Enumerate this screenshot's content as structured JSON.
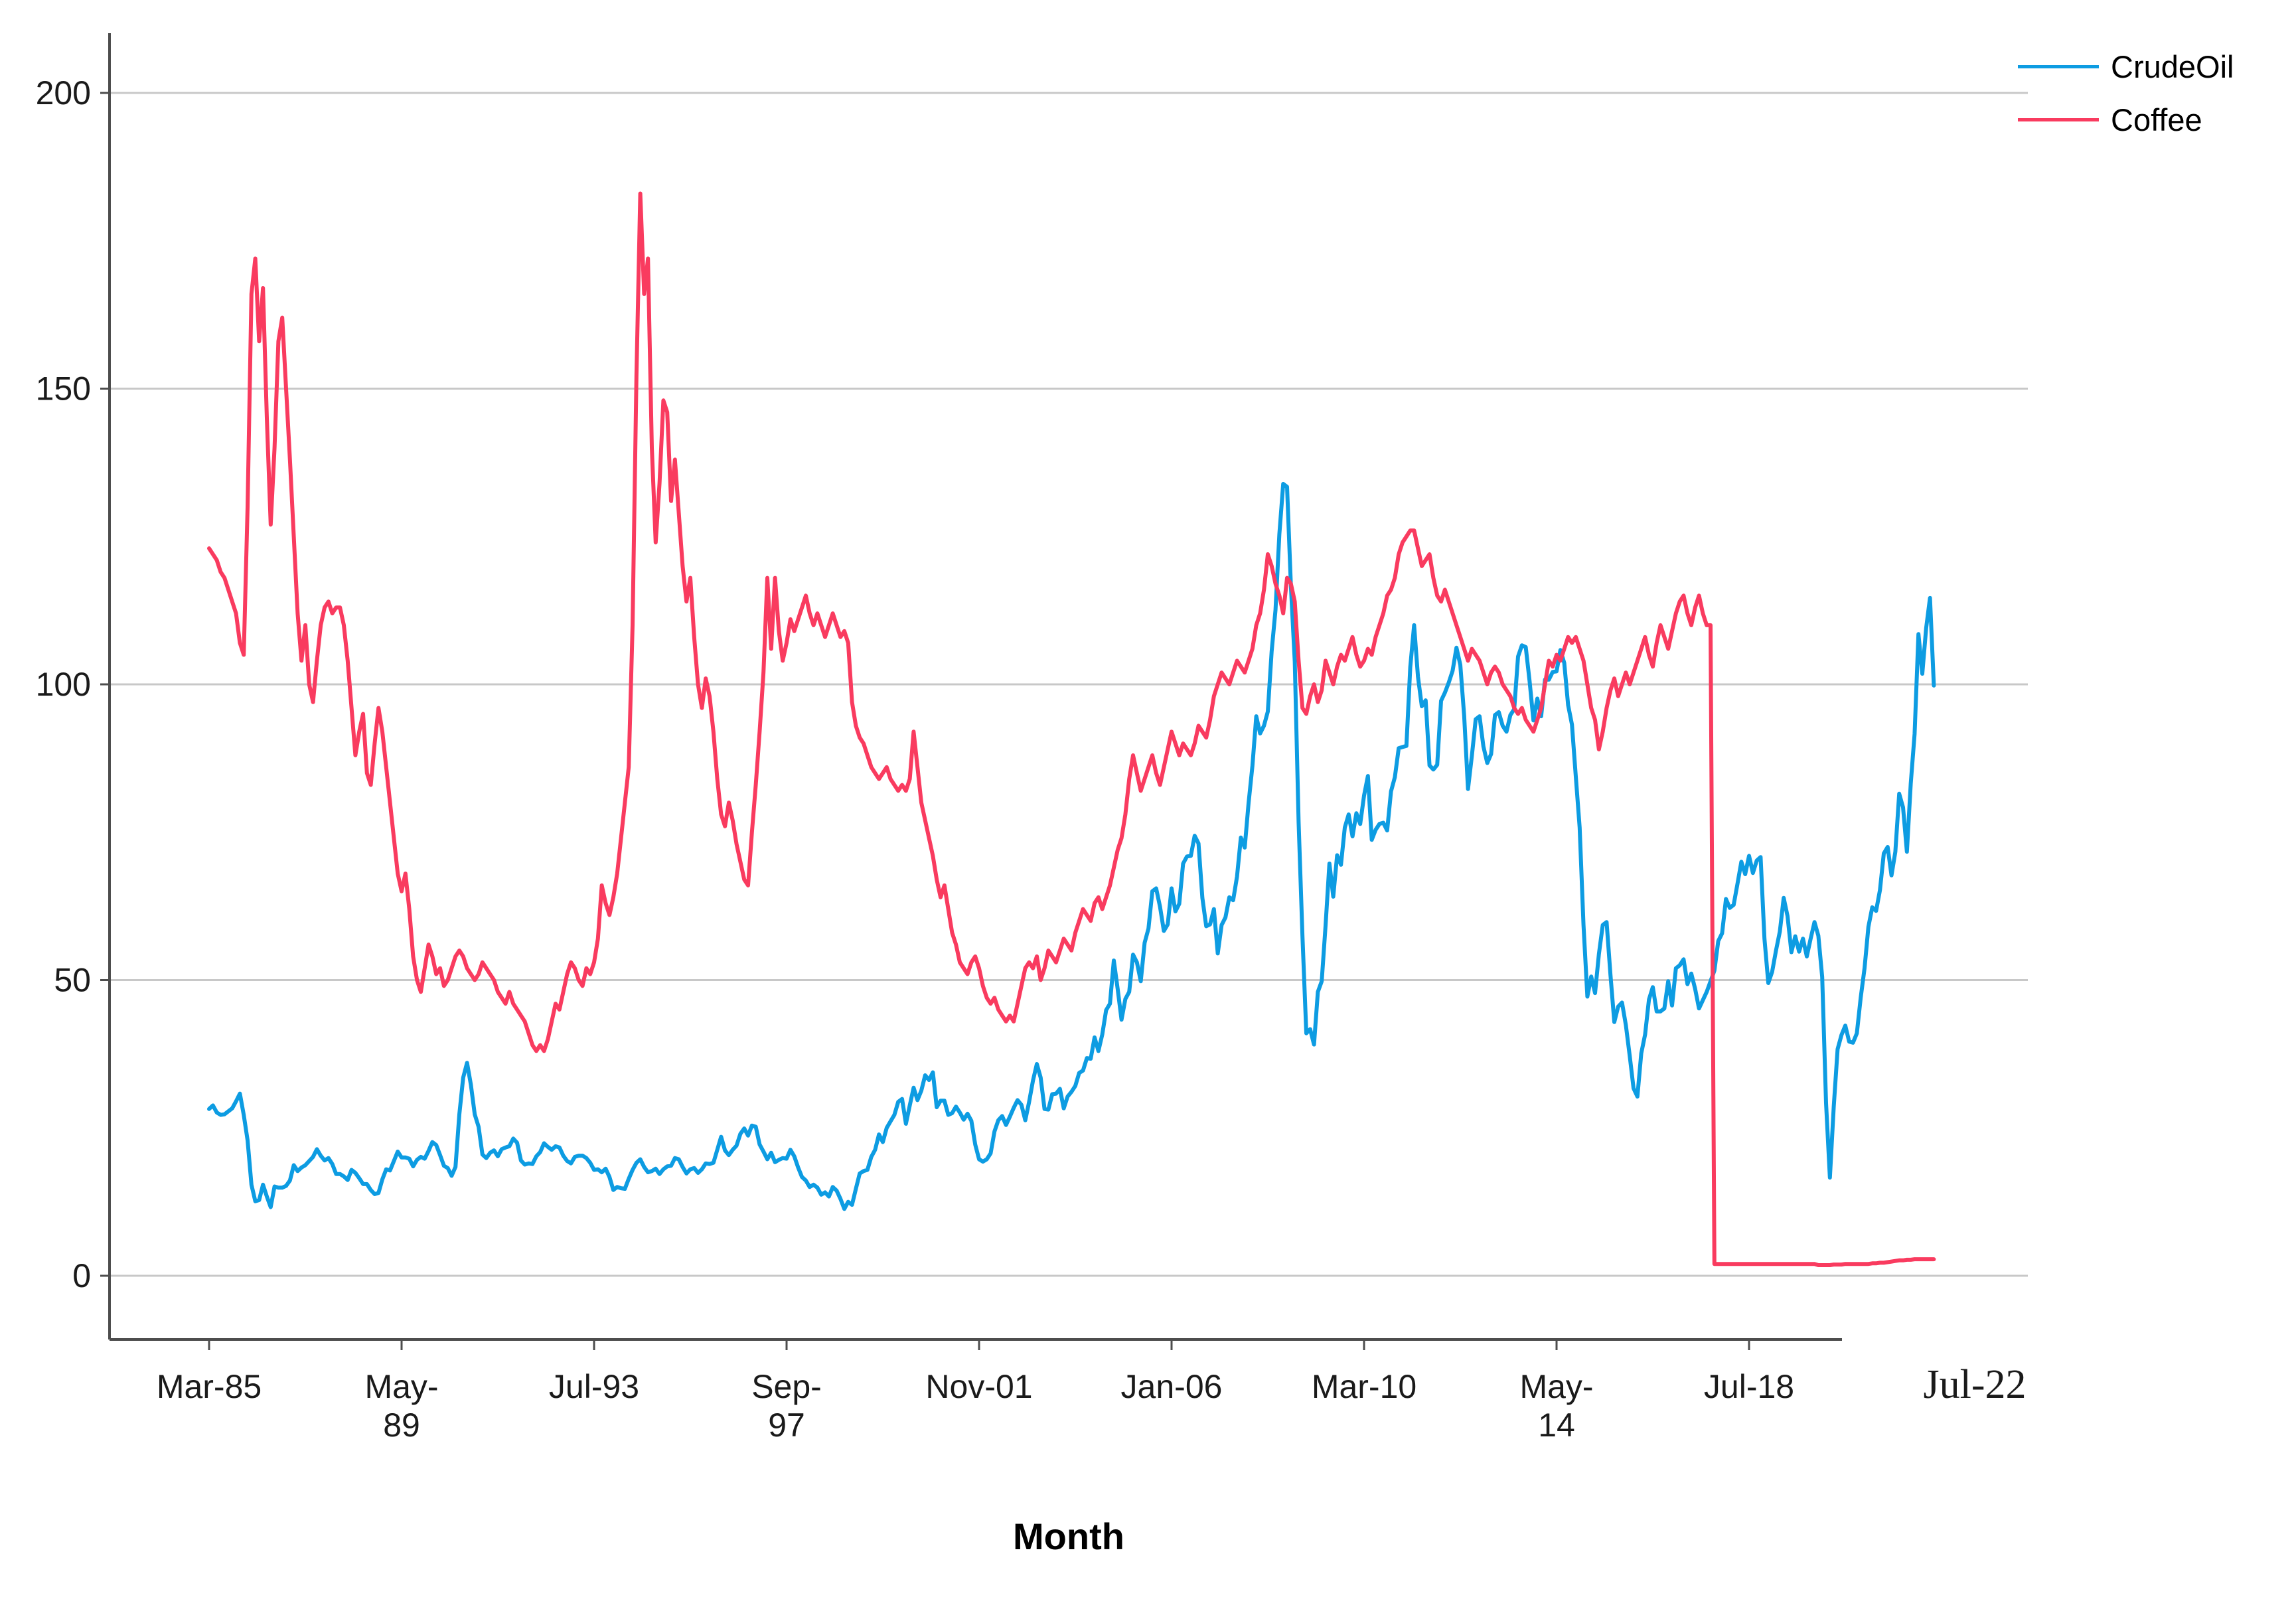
{
  "chart_data": {
    "type": "line",
    "title": "",
    "xlabel": "Month",
    "ylabel": "",
    "grid": true,
    "legend_position": "top-right",
    "frequency": "monthly",
    "start_month": "Mar-1985",
    "end_month": "Jul-2022",
    "ylim": [
      -10,
      210
    ],
    "y_ticks": [
      0,
      50,
      100,
      150,
      200
    ],
    "x_ticks": [
      {
        "label_lines": [
          "Mar-85"
        ],
        "month_index": 0
      },
      {
        "label_lines": [
          "May-",
          "89"
        ],
        "month_index": 50
      },
      {
        "label_lines": [
          "Jul-93"
        ],
        "month_index": 100
      },
      {
        "label_lines": [
          "Sep-",
          "97"
        ],
        "month_index": 150
      },
      {
        "label_lines": [
          "Nov-01"
        ],
        "month_index": 200
      },
      {
        "label_lines": [
          "Jan-06"
        ],
        "month_index": 250
      },
      {
        "label_lines": [
          "Mar-10"
        ],
        "month_index": 300
      },
      {
        "label_lines": [
          "May-",
          "14"
        ],
        "month_index": 350
      },
      {
        "label_lines": [
          "Jul-18"
        ],
        "month_index": 400
      },
      {
        "label_lines": [
          "Jul-22"
        ],
        "month_index": 448,
        "serif": true,
        "x_override": 2975
      }
    ],
    "series": [
      {
        "name": "CrudeOil",
        "color": "#0d9ce2",
        "values": [
          28.2,
          28.8,
          27.6,
          27.2,
          27.3,
          27.8,
          28.3,
          29.5,
          30.8,
          27.2,
          22.9,
          15.4,
          12.6,
          12.8,
          15.4,
          13.4,
          11.6,
          15.1,
          14.9,
          14.9,
          15.2,
          16.1,
          18.7,
          17.7,
          18.3,
          18.7,
          19.4,
          20.1,
          21.4,
          20.3,
          19.5,
          19.9,
          18.9,
          17.2,
          17.2,
          16.8,
          16.2,
          17.9,
          17.4,
          16.5,
          15.5,
          15.5,
          14.5,
          13.8,
          14.0,
          16.3,
          18.0,
          17.8,
          19.4,
          21.0,
          20.0,
          20.0,
          19.8,
          18.5,
          19.6,
          20.1,
          19.8,
          21.1,
          22.6,
          22.1,
          20.4,
          18.6,
          18.2,
          16.9,
          18.4,
          27.3,
          33.5,
          36.0,
          32.3,
          27.3,
          25.2,
          20.5,
          19.9,
          20.8,
          21.2,
          20.2,
          21.4,
          21.7,
          21.9,
          23.2,
          22.5,
          19.5,
          18.8,
          19.0,
          18.9,
          20.2,
          20.9,
          22.4,
          21.8,
          21.3,
          21.9,
          21.7,
          20.3,
          19.4,
          19.0,
          20.1,
          20.3,
          20.3,
          19.9,
          19.1,
          17.9,
          18.0,
          17.5,
          18.1,
          16.7,
          14.5,
          15.0,
          14.8,
          14.7,
          16.4,
          17.9,
          19.1,
          19.7,
          18.4,
          17.5,
          17.7,
          18.1,
          17.2,
          18.0,
          18.5,
          18.6,
          19.9,
          19.7,
          18.4,
          17.3,
          18.0,
          18.2,
          17.4,
          18.0,
          19.0,
          18.9,
          19.1,
          21.3,
          23.5,
          21.2,
          20.4,
          21.3,
          22.0,
          24.0,
          24.9,
          23.7,
          25.4,
          25.2,
          22.2,
          21.0,
          19.7,
          20.8,
          19.2,
          19.6,
          19.9,
          19.8,
          21.3,
          20.2,
          18.3,
          16.7,
          16.1,
          15.0,
          15.4,
          14.9,
          13.7,
          14.1,
          13.4,
          15.0,
          14.4,
          13.0,
          11.3,
          12.5,
          12.0,
          14.7,
          17.3,
          17.7,
          17.9,
          20.1,
          21.3,
          23.9,
          22.6,
          25.0,
          26.1,
          27.2,
          29.4,
          29.9,
          25.7,
          28.8,
          31.8,
          29.7,
          31.3,
          33.9,
          33.1,
          34.4,
          28.5,
          29.6,
          29.6,
          27.2,
          27.5,
          28.6,
          27.6,
          26.4,
          27.4,
          26.2,
          22.2,
          19.7,
          19.3,
          19.7,
          20.7,
          24.4,
          26.3,
          27.0,
          25.5,
          26.9,
          28.4,
          29.7,
          28.9,
          26.3,
          29.4,
          33.0,
          35.8,
          33.5,
          28.2,
          28.1,
          30.7,
          30.8,
          31.6,
          28.3,
          30.3,
          31.1,
          32.1,
          34.3,
          34.7,
          36.8,
          36.7,
          40.3,
          38.0,
          40.8,
          44.9,
          46.0,
          53.3,
          48.5,
          43.3,
          46.8,
          48.0,
          54.3,
          53.0,
          49.8,
          56.3,
          58.7,
          65.0,
          65.5,
          62.4,
          58.3,
          59.4,
          65.5,
          61.6,
          62.9,
          69.7,
          70.9,
          71.0,
          74.4,
          73.1,
          63.9,
          59.1,
          59.4,
          62.0,
          54.5,
          59.3,
          60.6,
          64.0,
          63.5,
          67.5,
          74.1,
          72.4,
          79.9,
          86.2,
          94.6,
          91.7,
          93.0,
          95.4,
          105.6,
          112.6,
          125.4,
          133.9,
          133.4,
          116.6,
          103.9,
          76.7,
          57.4,
          41.0,
          41.7,
          39.1,
          48.0,
          49.8,
          59.2,
          69.7,
          64.1,
          71.1,
          69.5,
          75.8,
          78.0,
          74.3,
          78.2,
          76.4,
          81.2,
          84.5,
          73.7,
          75.4,
          76.4,
          76.6,
          75.3,
          81.9,
          84.3,
          89.2,
          89.4,
          89.6,
          102.9,
          110.0,
          101.3,
          96.3,
          97.3,
          86.3,
          85.6,
          86.4,
          97.2,
          98.6,
          100.3,
          102.3,
          106.2,
          103.3,
          94.7,
          82.3,
          87.9,
          94.1,
          94.6,
          89.5,
          86.7,
          88.2,
          94.8,
          95.3,
          93.0,
          92.0,
          94.8,
          95.8,
          104.7,
          106.6,
          106.3,
          100.5,
          93.9,
          97.6,
          94.6,
          100.8,
          100.8,
          102.1,
          102.2,
          105.8,
          103.6,
          96.5,
          93.2,
          84.4,
          75.8,
          59.3,
          47.2,
          50.6,
          47.8,
          54.4,
          59.3,
          59.8,
          50.9,
          42.9,
          45.5,
          46.2,
          42.4,
          37.2,
          31.7,
          30.3,
          37.6,
          40.8,
          46.7,
          48.8,
          44.7,
          44.7,
          45.2,
          49.8,
          45.7,
          52.0,
          52.5,
          53.5,
          49.3,
          51.1,
          48.5,
          45.2,
          46.6,
          48.0,
          49.8,
          51.6,
          56.6,
          57.9,
          63.7,
          62.2,
          62.7,
          66.3,
          70.0,
          67.9,
          71.0,
          68.1,
          70.2,
          70.8,
          57.0,
          49.5,
          51.4,
          55.0,
          58.2,
          63.9,
          60.8,
          54.7,
          57.4,
          54.8,
          57.0,
          54.0,
          57.0,
          59.8,
          57.5,
          50.5,
          29.2,
          16.6,
          28.6,
          38.3,
          40.7,
          42.3,
          39.6,
          39.4,
          41.0,
          47.0,
          52.0,
          59.0,
          62.3,
          61.7,
          65.2,
          71.4,
          72.5,
          67.7,
          71.7,
          81.5,
          79.2,
          71.7,
          83.2,
          91.6,
          108.5,
          101.8,
          109.5,
          114.6,
          99.8
        ]
      },
      {
        "name": "Coffee",
        "color": "#f93b5f",
        "values": [
          123,
          122,
          121,
          119,
          118,
          116,
          114,
          112,
          107,
          105,
          130,
          166,
          172,
          158,
          167,
          145,
          127,
          140,
          158,
          162,
          150,
          138,
          125,
          112,
          104,
          110,
          100,
          97,
          104,
          110,
          113,
          114,
          112,
          113,
          113,
          110,
          104,
          96,
          88,
          92,
          95,
          85,
          83,
          90,
          96,
          92,
          86,
          80,
          74,
          68,
          65,
          68,
          62,
          54,
          50,
          48,
          52,
          56,
          54,
          51,
          52,
          49,
          50,
          52,
          54,
          55,
          54,
          52,
          51,
          50,
          51,
          53,
          52,
          51,
          50,
          48,
          47,
          46,
          48,
          46,
          45,
          44,
          43,
          41,
          39,
          38,
          39,
          38,
          40,
          43,
          46,
          45,
          48,
          51,
          53,
          52,
          50,
          49,
          52,
          51,
          53,
          57,
          66,
          63,
          61,
          64,
          68,
          74,
          80,
          86,
          110,
          152,
          183,
          166,
          172,
          140,
          124,
          134,
          148,
          146,
          131,
          138,
          129,
          120,
          114,
          118,
          108,
          100,
          96,
          101,
          98,
          92,
          84,
          78,
          76,
          80,
          77,
          73,
          70,
          67,
          66,
          75,
          83,
          92,
          102,
          118,
          106,
          118,
          109,
          104,
          107,
          111,
          109,
          111,
          113,
          115,
          112,
          110,
          112,
          110,
          108,
          110,
          112,
          110,
          108,
          109,
          107,
          97,
          93,
          91,
          90,
          88,
          86,
          85,
          84,
          85,
          86,
          84,
          83,
          82,
          83,
          82,
          84,
          92,
          86,
          80,
          77,
          74,
          71,
          67,
          64,
          66,
          62,
          58,
          56,
          53,
          52,
          51,
          53,
          54,
          52,
          49,
          47,
          46,
          47,
          45,
          44,
          43,
          44,
          43,
          46,
          49,
          52,
          53,
          52,
          54,
          50,
          52,
          55,
          54,
          53,
          55,
          57,
          56,
          55,
          58,
          60,
          62,
          61,
          60,
          63,
          64,
          62,
          64,
          66,
          69,
          72,
          74,
          78,
          84,
          88,
          85,
          82,
          84,
          86,
          88,
          85,
          83,
          86,
          89,
          92,
          90,
          88,
          90,
          89,
          88,
          90,
          93,
          92,
          91,
          94,
          98,
          100,
          102,
          101,
          100,
          102,
          104,
          103,
          102,
          104,
          106,
          110,
          112,
          116,
          122,
          120,
          117,
          115,
          112,
          118,
          117,
          114,
          104,
          96,
          95,
          98,
          100,
          97,
          99,
          104,
          102,
          100,
          103,
          105,
          104,
          106,
          108,
          105,
          103,
          104,
          106,
          105,
          108,
          110,
          112,
          115,
          116,
          118,
          122,
          124,
          125,
          126,
          126,
          123,
          120,
          121,
          122,
          118,
          115,
          114,
          116,
          114,
          112,
          110,
          108,
          106,
          104,
          106,
          105,
          104,
          102,
          100,
          102,
          103,
          102,
          100,
          99,
          98,
          96,
          95,
          96,
          94,
          93,
          92,
          94,
          96,
          100,
          104,
          103,
          105,
          104,
          106,
          108,
          107,
          108,
          106,
          104,
          100,
          96,
          94,
          89,
          92,
          96,
          99,
          101,
          98,
          100,
          102,
          100,
          102,
          104,
          106,
          108,
          105,
          103,
          107,
          110,
          108,
          106,
          109,
          112,
          114,
          115,
          112,
          110,
          113,
          115,
          112,
          110,
          110,
          2,
          2,
          2,
          2,
          2,
          2,
          2,
          2,
          2,
          2,
          2,
          2,
          2,
          2,
          2,
          2,
          2,
          2,
          2,
          2,
          2,
          2,
          2,
          2,
          2,
          2,
          2,
          1.8,
          1.8,
          1.8,
          1.8,
          1.9,
          1.9,
          1.9,
          2,
          2,
          2,
          2,
          2,
          2,
          2,
          2.1,
          2.1,
          2.2,
          2.2,
          2.3,
          2.4,
          2.5,
          2.6,
          2.6,
          2.7,
          2.7,
          2.8,
          2.8,
          2.8,
          2.8,
          2.8,
          2.8
        ]
      }
    ],
    "colors": {
      "crudeoil_line": "#0d9ce2",
      "coffee_line": "#f93b5f",
      "gridline": "#c8c8c8",
      "axis": "#4d4d4d",
      "tick_text": "#1a1a1a"
    }
  },
  "legend": {
    "items": [
      {
        "label": "CrudeOil",
        "color": "#0d9ce2"
      },
      {
        "label": "Coffee",
        "color": "#f93b5f"
      }
    ]
  },
  "axis_titles": {
    "x": "Month"
  }
}
